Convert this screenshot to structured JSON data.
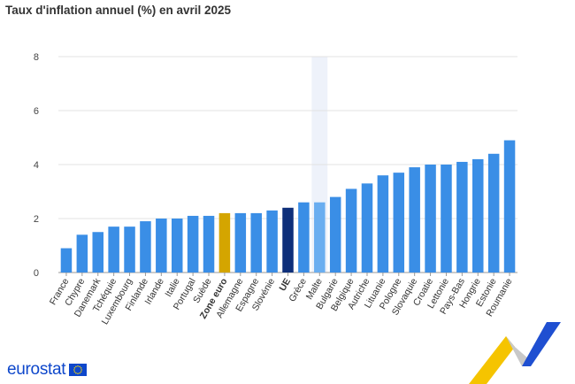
{
  "title": "Taux d'inflation annuel (%) en avril 2025",
  "brand": {
    "logo_text": "eurostat"
  },
  "colors": {
    "country": "#3a8ee6",
    "euro_area": "#d4a500",
    "eu": "#0e2f7a",
    "highlight_band": "#eef2fa",
    "highlighted_bar": "#6aaef0",
    "grid": "#e3e3e3",
    "axis": "#999999"
  },
  "chart_data": {
    "type": "bar",
    "title": "Taux d'inflation annuel (%) en avril 2025",
    "xlabel": "",
    "ylabel": "",
    "ylim": [
      0,
      8
    ],
    "yticks": [
      0,
      2,
      4,
      6,
      8
    ],
    "grid": true,
    "highlighted_category": "Malte",
    "categories": [
      "France",
      "Chypre",
      "Danemark",
      "Tchéquie",
      "Luxembourg",
      "Finlande",
      "Irlande",
      "Italie",
      "Portugal",
      "Suède",
      "Zone euro",
      "Allemagne",
      "Espagne",
      "Slovénie",
      "UE",
      "Grèce",
      "Malte",
      "Bulgarie",
      "Belgique",
      "Autriche",
      "Lituanie",
      "Pologne",
      "Slovaquie",
      "Croatie",
      "Lettonie",
      "Pays-Bas",
      "Hongrie",
      "Estonie",
      "Roumanie"
    ],
    "values": [
      0.9,
      1.4,
      1.5,
      1.7,
      1.7,
      1.9,
      2.0,
      2.0,
      2.1,
      2.1,
      2.2,
      2.2,
      2.2,
      2.3,
      2.4,
      2.6,
      2.6,
      2.8,
      3.1,
      3.3,
      3.6,
      3.7,
      3.9,
      4.0,
      4.0,
      4.1,
      4.2,
      4.4,
      4.9
    ],
    "bar_kinds": [
      "country",
      "country",
      "country",
      "country",
      "country",
      "country",
      "country",
      "country",
      "country",
      "country",
      "euro_area",
      "country",
      "country",
      "country",
      "eu",
      "country",
      "country",
      "country",
      "country",
      "country",
      "country",
      "country",
      "country",
      "country",
      "country",
      "country",
      "country",
      "country",
      "country"
    ]
  }
}
